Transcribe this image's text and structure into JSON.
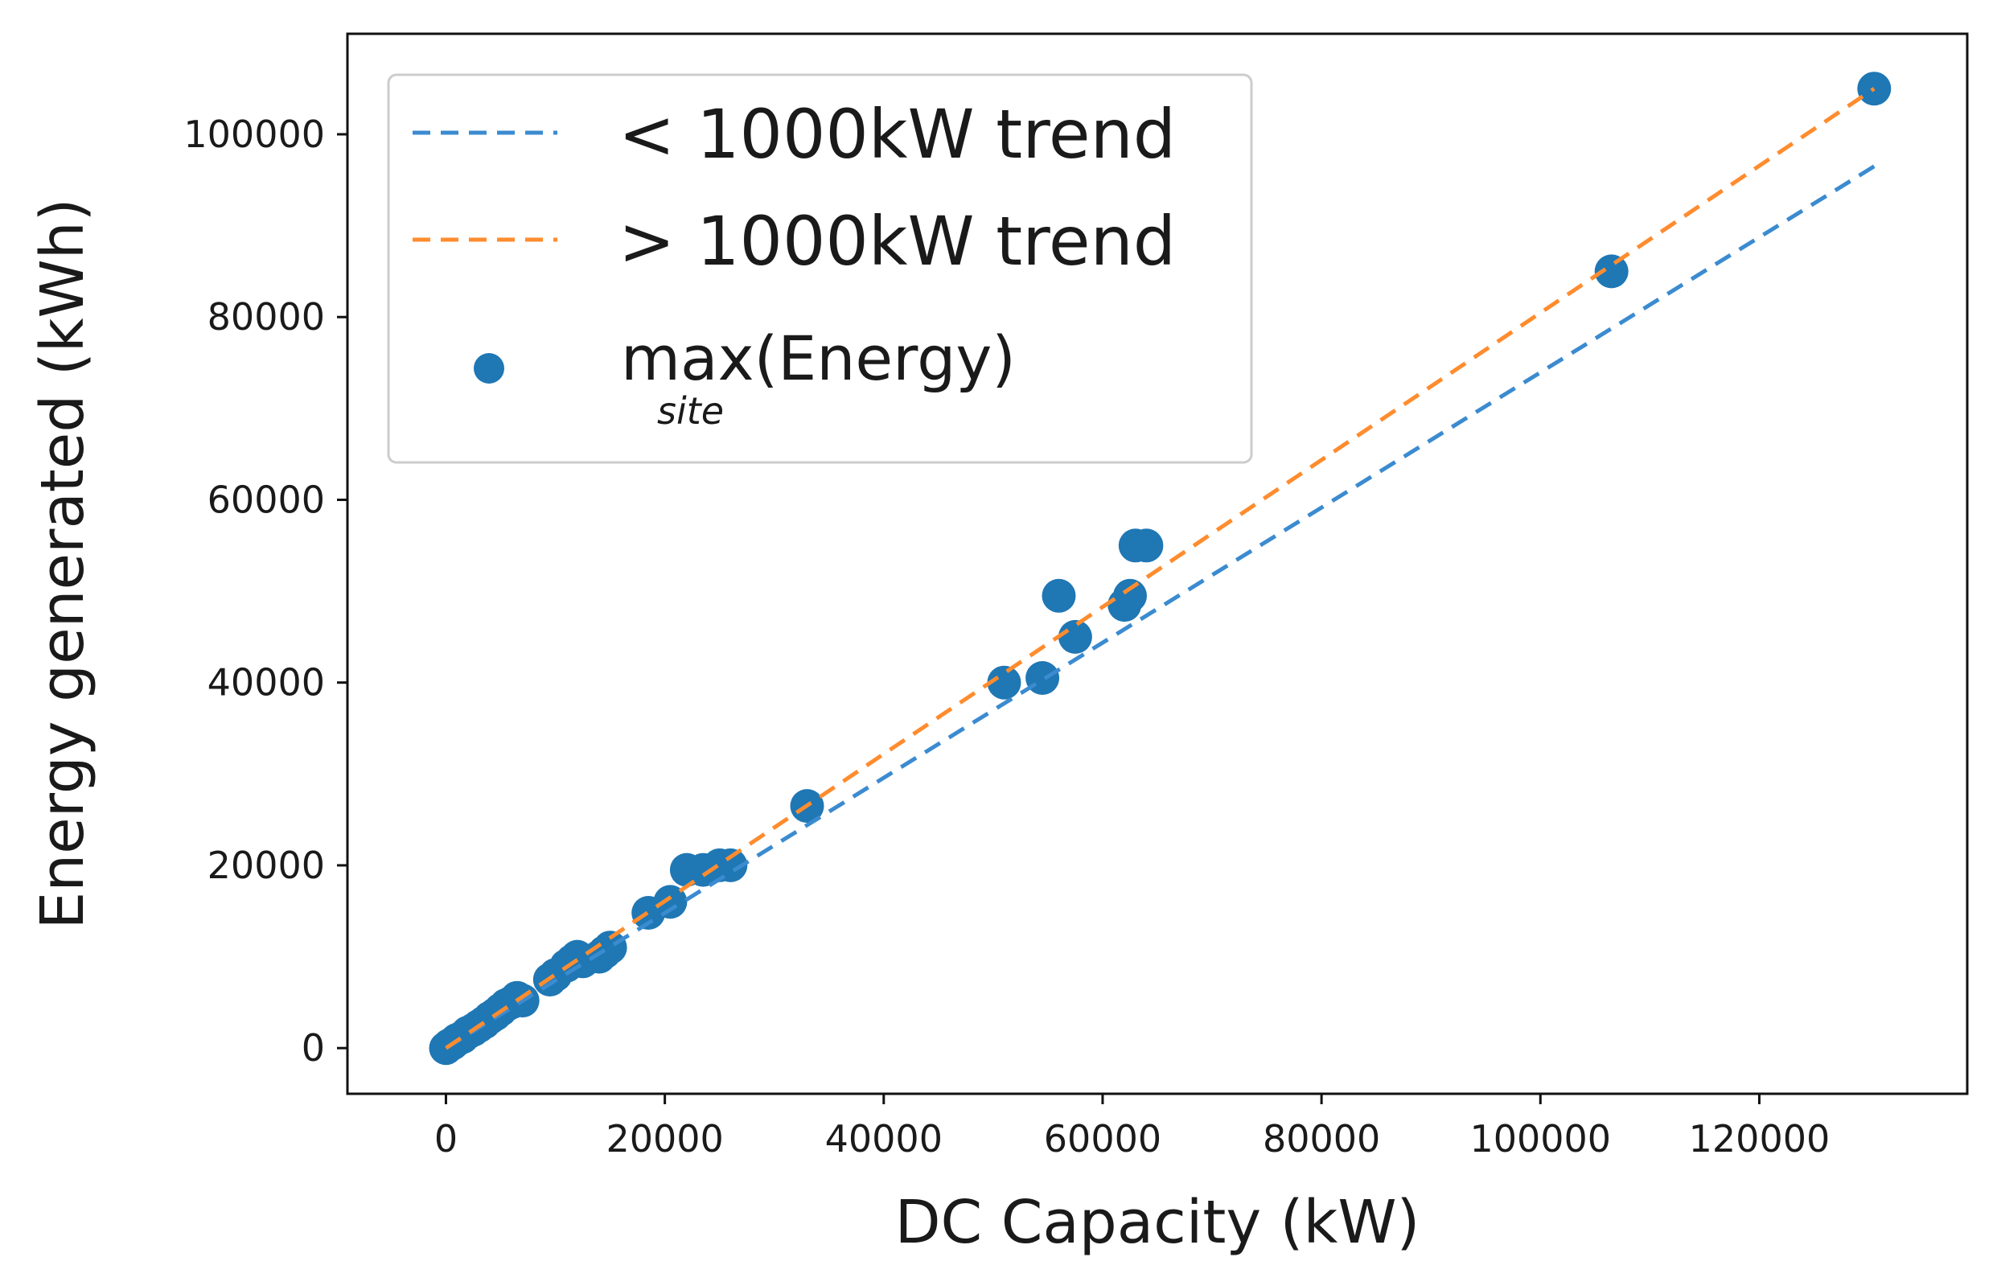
{
  "chart_data": {
    "type": "scatter",
    "xlabel": "DC Capacity (kW)",
    "ylabel": "Energy generated (kWh)",
    "xlim": [
      -9000,
      139000
    ],
    "ylim": [
      -5000,
      111000
    ],
    "xticks": [
      0,
      20000,
      40000,
      60000,
      80000,
      100000,
      120000
    ],
    "yticks": [
      0,
      20000,
      40000,
      60000,
      80000,
      100000
    ],
    "xtick_labels": [
      "0",
      "20000",
      "40000",
      "60000",
      "80000",
      "100000",
      "120000"
    ],
    "ytick_labels": [
      "0",
      "20000",
      "40000",
      "60000",
      "80000",
      "100000"
    ],
    "grid": false,
    "legend_position": "top-left",
    "series": [
      {
        "name": "< 1000kW trend",
        "kind": "line",
        "style": "dashed",
        "color": "#3b8bd0",
        "points": [
          [
            0,
            0
          ],
          [
            130500,
            96500
          ]
        ]
      },
      {
        "name": "> 1000kW trend",
        "kind": "line",
        "style": "dashed",
        "color": "#ff8c2e",
        "points": [
          [
            0,
            0
          ],
          [
            130500,
            105000
          ]
        ]
      },
      {
        "name": "max(Energy)",
        "name_subscript": "site",
        "kind": "scatter",
        "color": "#1f77b4",
        "points": [
          [
            0,
            0
          ],
          [
            300,
            300
          ],
          [
            600,
            500
          ],
          [
            1000,
            900
          ],
          [
            1500,
            1200
          ],
          [
            2000,
            1700
          ],
          [
            2500,
            2000
          ],
          [
            3000,
            2400
          ],
          [
            3500,
            2800
          ],
          [
            4000,
            3300
          ],
          [
            4500,
            3700
          ],
          [
            5000,
            4200
          ],
          [
            5500,
            4700
          ],
          [
            6000,
            5000
          ],
          [
            6500,
            5500
          ],
          [
            7000,
            5200
          ],
          [
            9500,
            7500
          ],
          [
            10000,
            8000
          ],
          [
            11000,
            9000
          ],
          [
            11500,
            9500
          ],
          [
            12000,
            10000
          ],
          [
            12500,
            9500
          ],
          [
            14000,
            10000
          ],
          [
            14500,
            10500
          ],
          [
            15000,
            11000
          ],
          [
            18500,
            14800
          ],
          [
            20500,
            16000
          ],
          [
            22000,
            19500
          ],
          [
            23500,
            19500
          ],
          [
            25000,
            20000
          ],
          [
            26000,
            20000
          ],
          [
            33000,
            26500
          ],
          [
            51000,
            40000
          ],
          [
            54500,
            40500
          ],
          [
            56000,
            49500
          ],
          [
            57500,
            45000
          ],
          [
            62000,
            48500
          ],
          [
            62500,
            49500
          ],
          [
            63000,
            55000
          ],
          [
            64000,
            55000
          ],
          [
            106500,
            85000
          ],
          [
            130500,
            105000
          ]
        ]
      }
    ]
  }
}
